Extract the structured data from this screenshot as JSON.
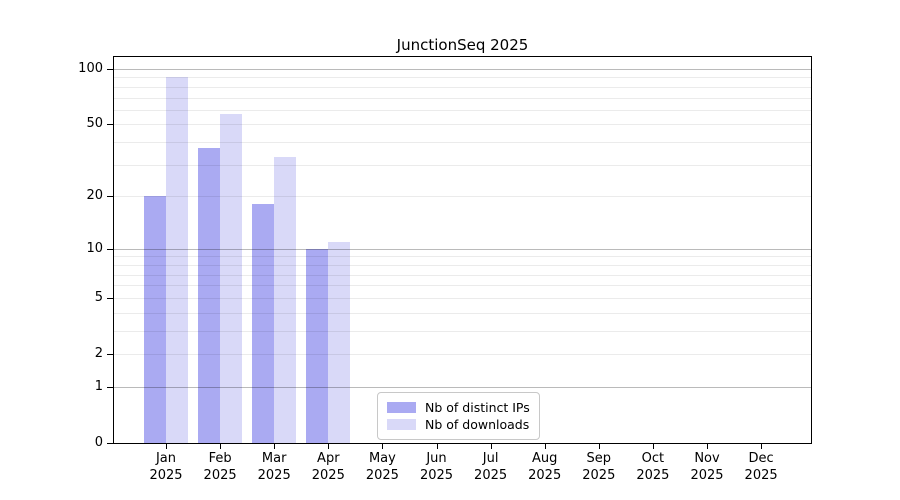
{
  "chart_data": {
    "type": "bar",
    "title": "JunctionSeq 2025",
    "x_months": [
      "Jan",
      "Feb",
      "Mar",
      "Apr",
      "May",
      "Jun",
      "Jul",
      "Aug",
      "Sep",
      "Oct",
      "Nov",
      "Dec"
    ],
    "x_year": "2025",
    "series": [
      {
        "key": "distinct-ips",
        "name": "Nb of distinct IPs",
        "color": "#aaaaf2",
        "values": [
          20,
          37,
          18,
          10,
          0,
          0,
          0,
          0,
          0,
          0,
          0,
          0
        ]
      },
      {
        "key": "downloads",
        "name": "Nb of downloads",
        "color": "#d9d9f8",
        "values": [
          90,
          57,
          33,
          11,
          0,
          0,
          0,
          0,
          0,
          0,
          0,
          0
        ]
      }
    ],
    "y_axis": {
      "scale": "log10(value+1)",
      "tick_labels": [
        "100",
        "50",
        "20",
        "10",
        "5",
        "2",
        "1",
        "0"
      ],
      "tick_values": [
        100,
        50,
        20,
        10,
        5,
        2,
        1,
        0
      ],
      "major_gridlines": [
        1,
        10,
        100
      ],
      "minor_gridlines": [
        2,
        3,
        4,
        5,
        6,
        7,
        8,
        9,
        20,
        30,
        40,
        50,
        60,
        70,
        80,
        90
      ],
      "ylim": [
        0,
        117
      ]
    },
    "grid": "on",
    "legend_position": "bottom-center-inside"
  },
  "colors": {
    "bar_distinct_ips": "#aaaaf2",
    "bar_downloads": "#d9d9f8",
    "major_gridline": "#bababa",
    "minor_gridline": "#ebebeb",
    "axis_spine": "#000000",
    "legend_border": "#c8c8c8",
    "background": "#ffffff"
  }
}
